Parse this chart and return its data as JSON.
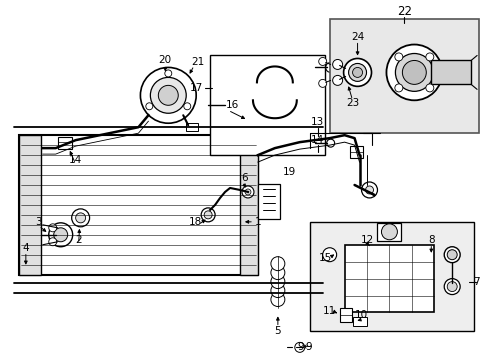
{
  "bg_color": "#ffffff",
  "fig_width": 4.89,
  "fig_height": 3.6,
  "dpi": 100,
  "line_color": "#000000",
  "inset3_fill": "#e8e8e8",
  "inset2_fill": "#e8e8e8"
}
